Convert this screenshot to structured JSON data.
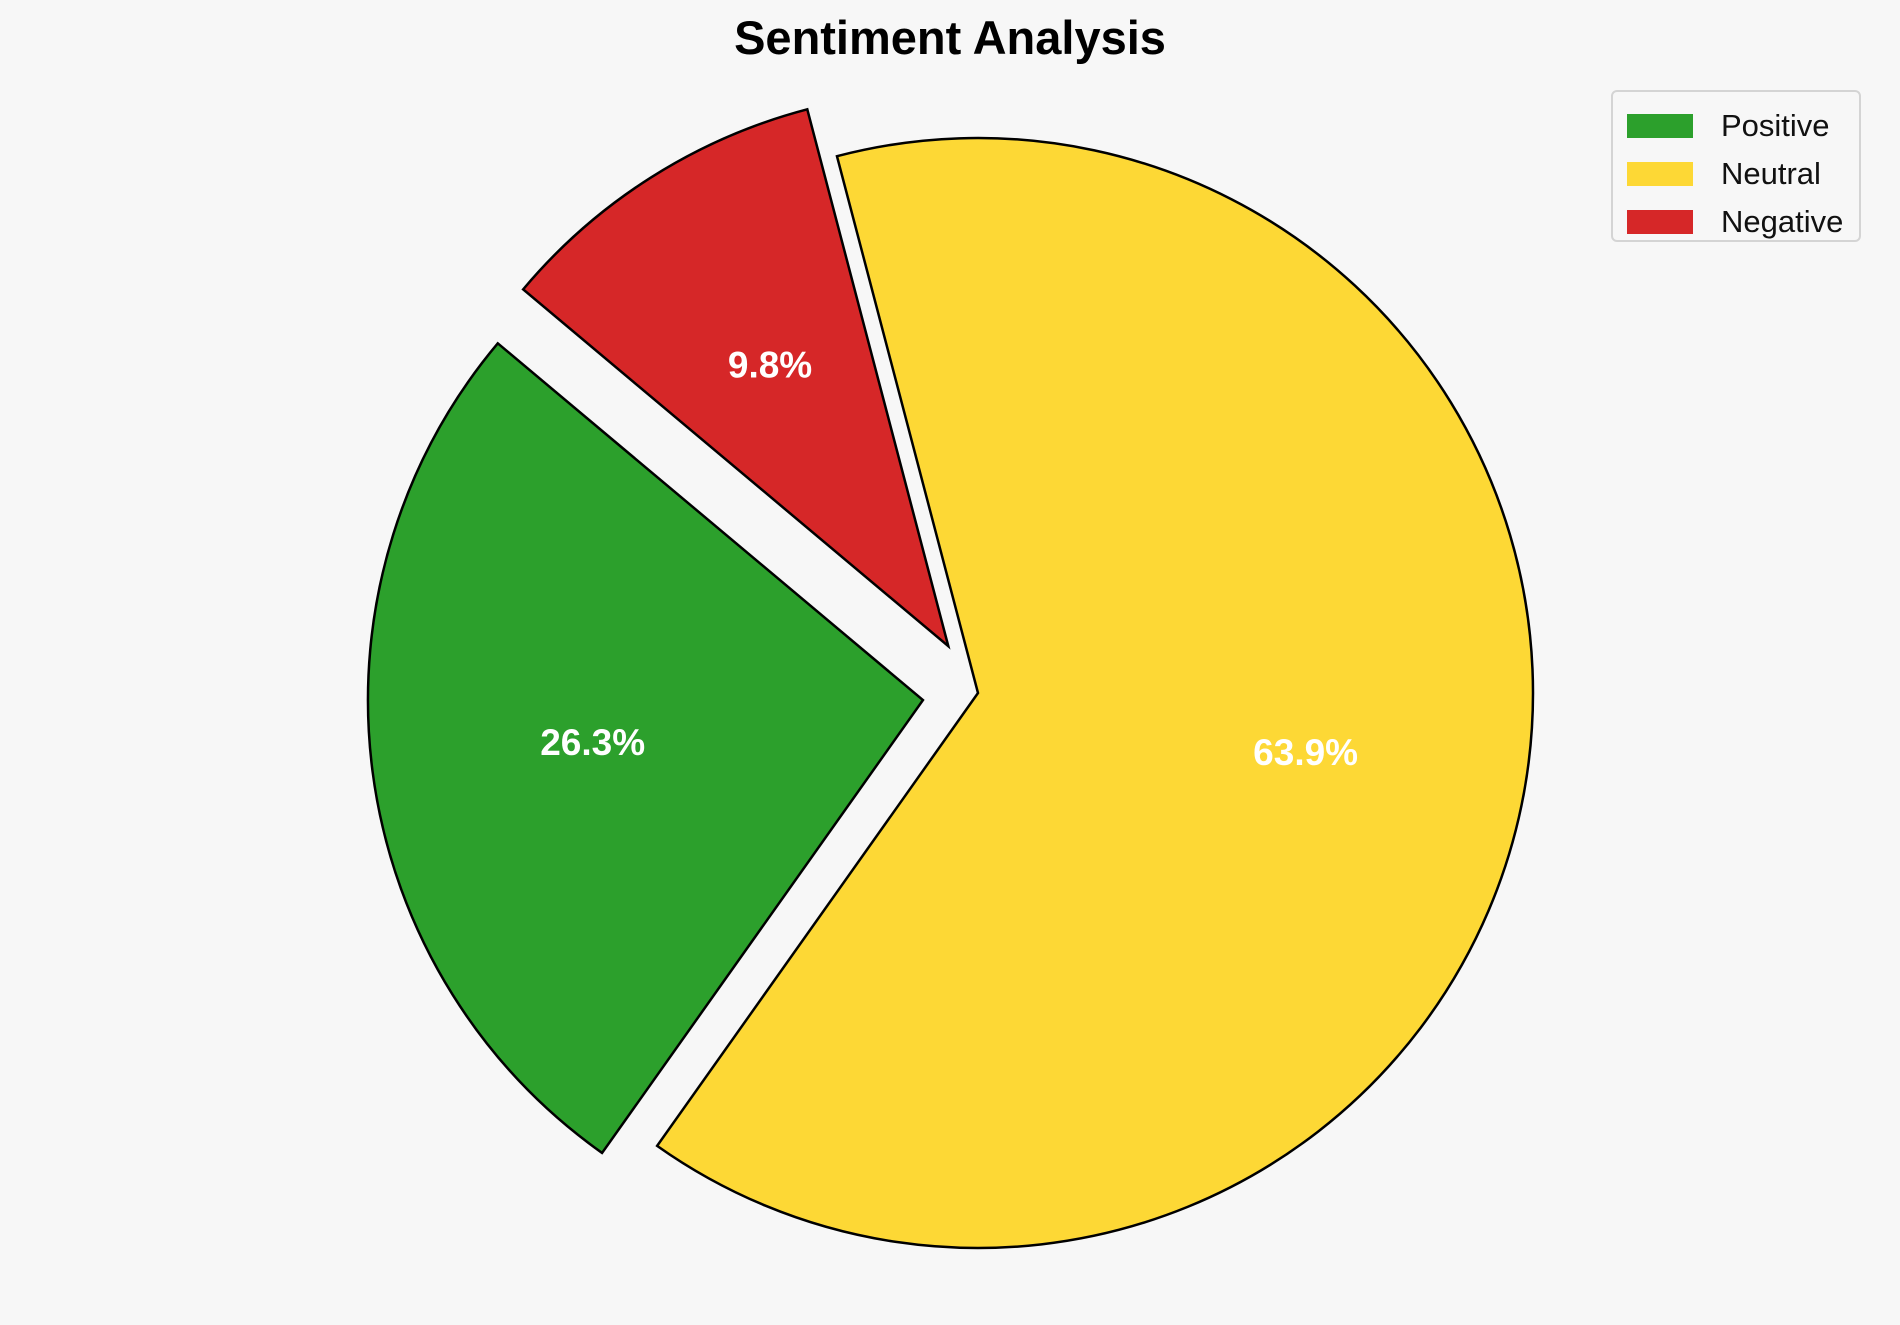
{
  "chart_data": {
    "type": "pie",
    "title": "Sentiment Analysis",
    "categories": [
      "Positive",
      "Neutral",
      "Negative"
    ],
    "values": [
      26.3,
      63.9,
      9.8
    ],
    "labels": [
      "26.3%",
      "63.9%",
      "9.8%"
    ],
    "colors": [
      "#2ca02c",
      "#fdd835",
      "#d62728"
    ],
    "exploded": [
      true,
      false,
      true
    ],
    "legend_position": "top-right"
  }
}
